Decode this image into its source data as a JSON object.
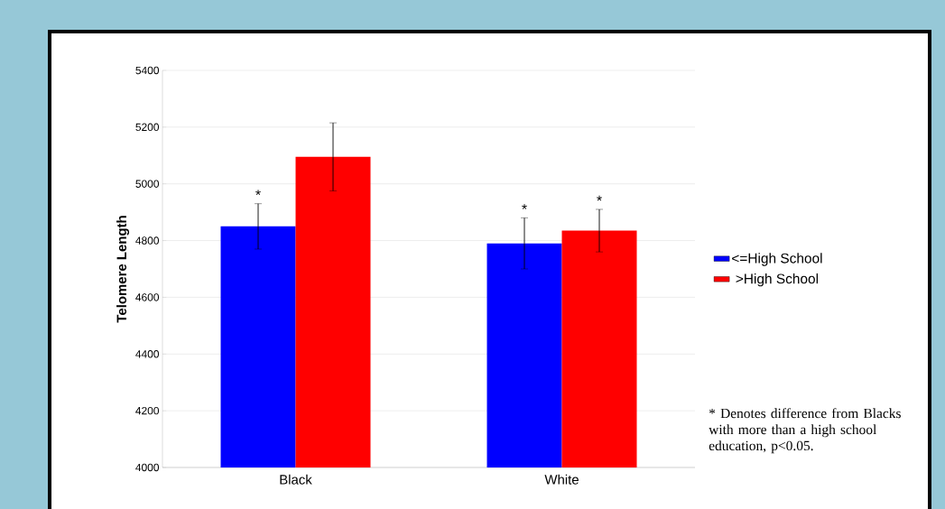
{
  "chart_data": {
    "type": "bar",
    "ylabel": "Telomere Length",
    "categories": [
      "Black",
      "White"
    ],
    "series": [
      {
        "name": "<=High School",
        "color": "#0000ff",
        "values": [
          4850,
          4790
        ],
        "errors": [
          80,
          90
        ],
        "value_labels": [
          "*",
          "*"
        ]
      },
      {
        "name": ">High School",
        "color": "#ff0000",
        "values": [
          5095,
          4835
        ],
        "errors": [
          120,
          75
        ],
        "value_labels": [
          null,
          "*"
        ]
      }
    ],
    "ylim": [
      4000,
      5400
    ],
    "yticks": [
      4000,
      4200,
      4400,
      4600,
      4800,
      5000,
      5200,
      5400
    ],
    "grid": "y",
    "legend": "right",
    "annotations": [
      "* Denotes difference from Blacks with more than a high school education, p<0.05."
    ]
  }
}
